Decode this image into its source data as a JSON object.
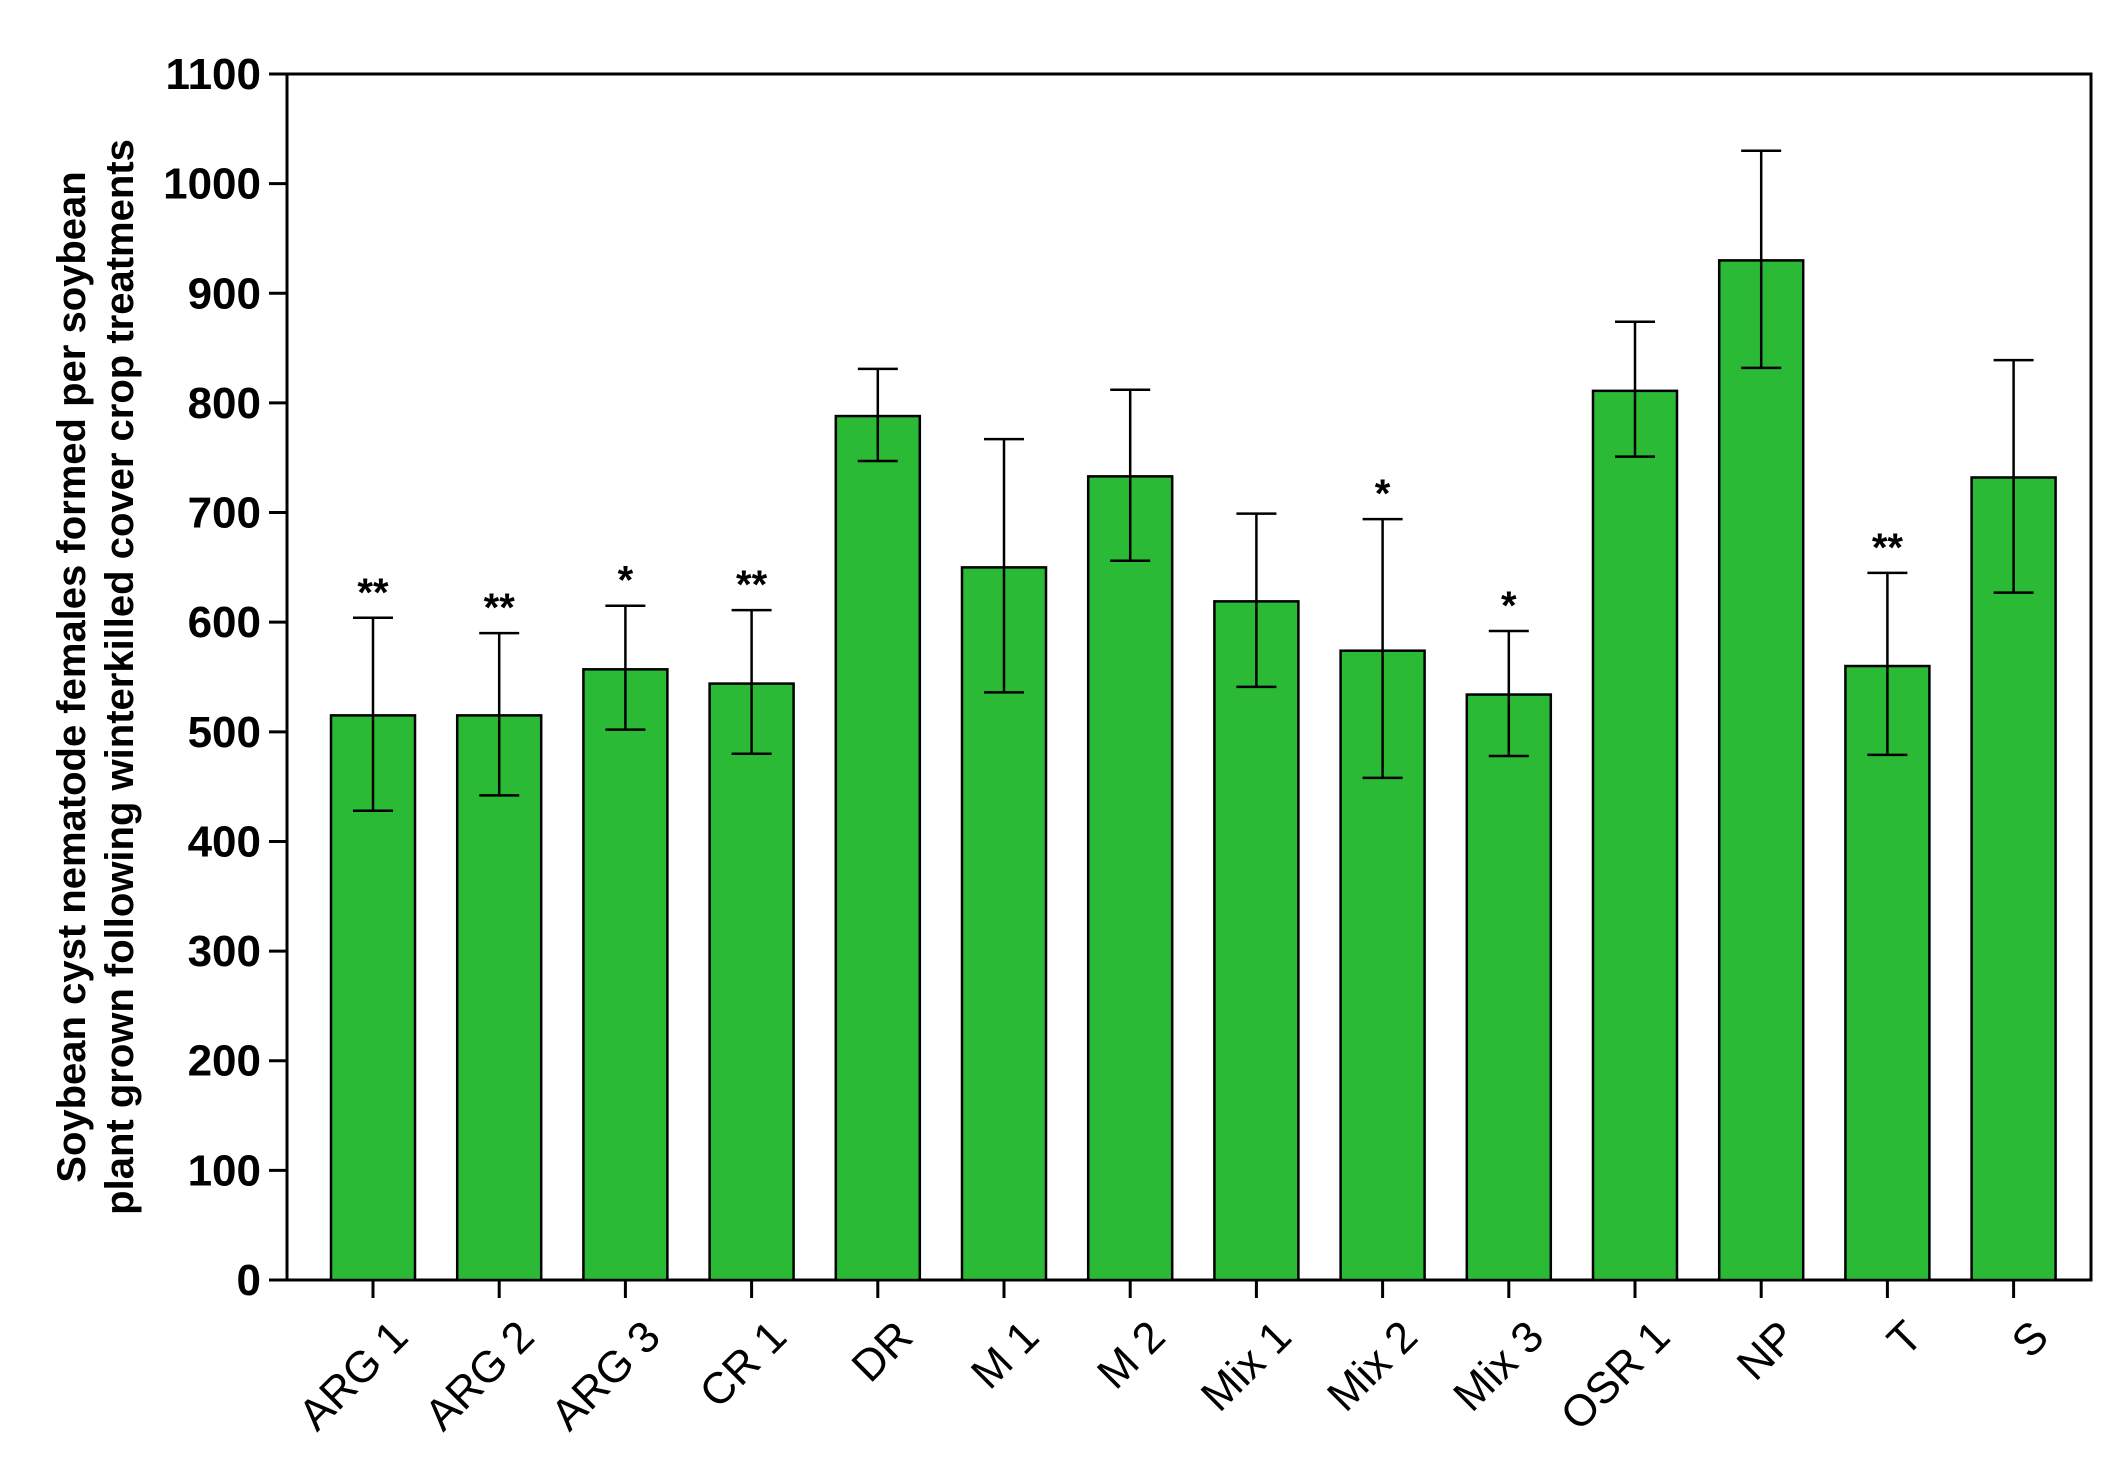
{
  "chart_data": {
    "type": "bar",
    "ylabel_lines": [
      "Soybean cyst nematode females formed per soybean",
      "plant grown following winterkilled cover crop treatments"
    ],
    "xlabel": "",
    "ylim": [
      0,
      1100
    ],
    "yticks": [
      0,
      100,
      200,
      300,
      400,
      500,
      600,
      700,
      800,
      900,
      1000,
      1100
    ],
    "categories": [
      "ARG 1",
      "ARG 2",
      "ARG 3",
      "CR 1",
      "DR",
      "M 1",
      "M 2",
      "Mix 1",
      "Mix 2",
      "Mix 3",
      "OSR 1",
      "NP",
      "T",
      "S"
    ],
    "values": [
      515,
      515,
      557,
      544,
      788,
      650,
      733,
      619,
      574,
      534,
      811,
      930,
      560,
      732
    ],
    "error_low": [
      428,
      442,
      502,
      480,
      747,
      536,
      656,
      541,
      458,
      478,
      751,
      832,
      479,
      627
    ],
    "error_high": [
      604,
      590,
      615,
      611,
      831,
      767,
      812,
      699,
      694,
      592,
      874,
      1030,
      645,
      839
    ],
    "significance": [
      "**",
      "**",
      "*",
      "**",
      "",
      "",
      "",
      "",
      "*",
      "*",
      "",
      "",
      "**",
      ""
    ],
    "bar_color": "#2bba36",
    "grid": false,
    "legend": "none"
  }
}
